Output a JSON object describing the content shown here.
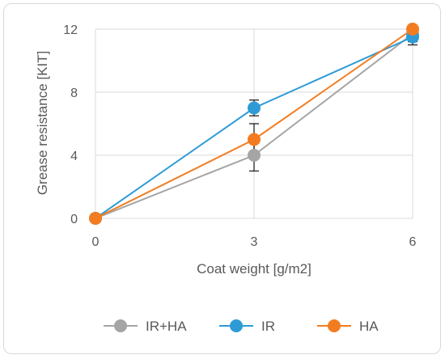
{
  "chart_data": {
    "type": "line",
    "title": "",
    "xlabel": "Coat weight [g/m2]",
    "ylabel": "Grease resistance [KIT]",
    "x": [
      0,
      3,
      6
    ],
    "x_ticks": [
      "0",
      "3",
      "6"
    ],
    "y_ticks": [
      "0",
      "4",
      "8",
      "12"
    ],
    "xlim": [
      0,
      6
    ],
    "ylim": [
      0,
      12
    ],
    "grid": "on",
    "legend_position": "bottom",
    "series": [
      {
        "name": "IR+HA",
        "color": "#a5a5a5",
        "values": [
          0,
          4,
          11.7
        ],
        "error": [
          0,
          1,
          0.5
        ]
      },
      {
        "name": "IR",
        "color": "#2e9bd6",
        "values": [
          0,
          7,
          11.5
        ],
        "error": [
          0,
          0.5,
          0.5
        ]
      },
      {
        "name": "HA",
        "color": "#f47c20",
        "values": [
          0,
          5,
          12
        ],
        "error": [
          0,
          1,
          0
        ]
      }
    ]
  }
}
